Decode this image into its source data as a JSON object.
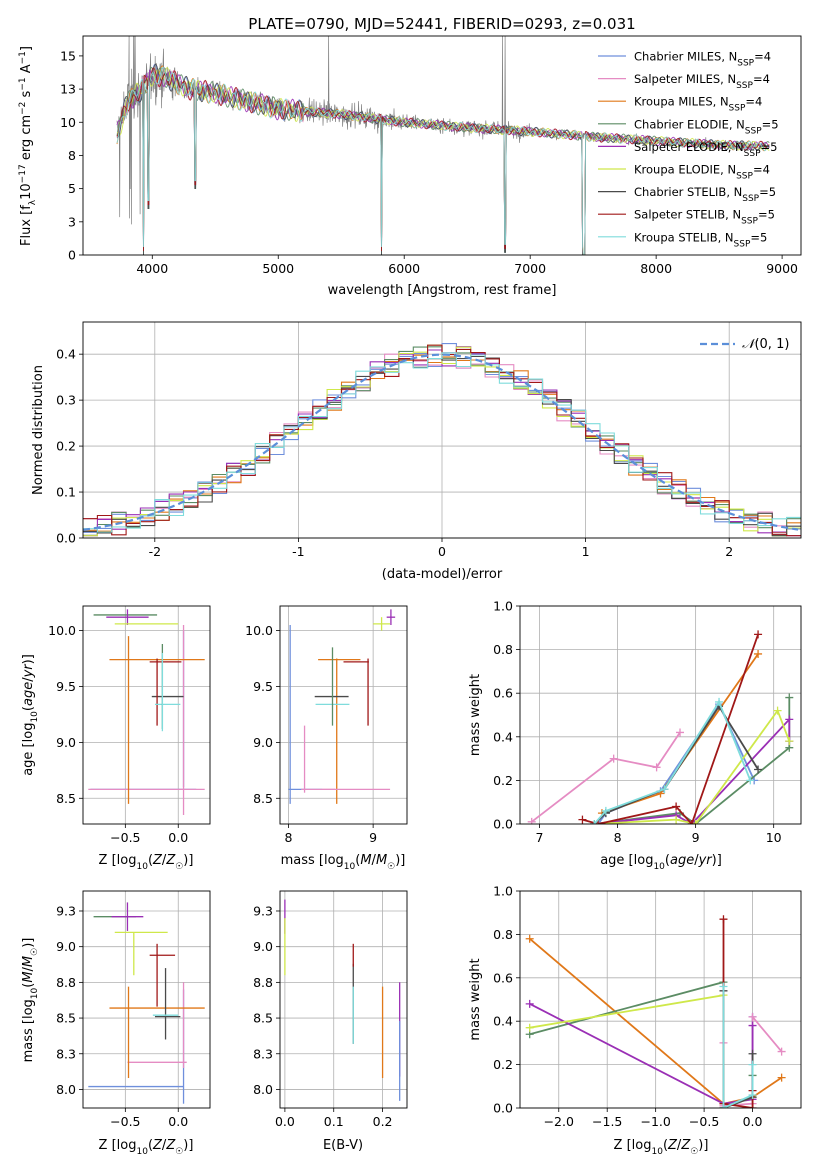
{
  "colors": {
    "Chabrier MILES": "#6f8fdc",
    "Salpeter MILES": "#e58cc3",
    "Kroupa MILES": "#e07819",
    "Chabrier ELODIE": "#5b8c64",
    "Salpeter ELODIE": "#9a2fb5",
    "Kroupa ELODIE": "#cfe84a",
    "Chabrier STELIB": "#4a4a4a",
    "Salpeter STELIB": "#a01818",
    "Kroupa STELIB": "#7fdcdc",
    "data": "#808080",
    "normal": "#5b8fd9",
    "grid": "#b0b0b0"
  },
  "chart_data": [
    {
      "id": "spectrum",
      "type": "line",
      "title": "PLATE=0790, MJD=52441, FIBERID=0293, z=0.031",
      "xlabel": "wavelength [Angstrom, rest frame]",
      "ylabel": "Flux [f_λ10^-17 erg cm^-2 s^-1 A^-1]",
      "xlim": [
        3450,
        9150
      ],
      "ylim": [
        0,
        16.5
      ],
      "xticks": [
        4000,
        5000,
        6000,
        7000,
        8000,
        9000
      ],
      "yticks": [
        0.0,
        2.5,
        5.0,
        7.5,
        10.0,
        12.5,
        15.0
      ],
      "grid": false,
      "legend_position": "top-right",
      "legend": [
        "Chabrier MILES, N_SSP=4",
        "Salpeter MILES, N_SSP=4",
        "Kroupa MILES, N_SSP=4",
        "Chabrier ELODIE, N_SSP=5",
        "Salpeter ELODIE, N_SSP=5",
        "Kroupa ELODIE, N_SSP=4",
        "Chabrier STELIB, N_SSP=5",
        "Salpeter STELIB, N_SSP=5",
        "Kroupa STELIB, N_SSP=5"
      ],
      "model_continuum": [
        [
          3720,
          9.0
        ],
        [
          3800,
          11.5
        ],
        [
          3900,
          12.3
        ],
        [
          4000,
          13.6
        ],
        [
          4100,
          13.4
        ],
        [
          4300,
          12.5
        ],
        [
          4500,
          12.2
        ],
        [
          5000,
          11.0
        ],
        [
          5500,
          10.6
        ],
        [
          6000,
          10.0
        ],
        [
          6500,
          9.6
        ],
        [
          7000,
          9.3
        ],
        [
          7500,
          8.9
        ],
        [
          8000,
          8.6
        ],
        [
          8500,
          8.3
        ],
        [
          8900,
          8.2
        ]
      ],
      "absorption_dips": [
        [
          3930,
          0.0
        ],
        [
          3968,
          3.5
        ],
        [
          4340,
          5.0
        ],
        [
          6800,
          0.2
        ],
        [
          5820,
          0.0
        ],
        [
          7420,
          0.0
        ]
      ],
      "model_wavelength_range": [
        3720,
        8900
      ],
      "data_wavelength_range": [
        3720,
        8800
      ]
    },
    {
      "id": "residuals",
      "type": "line",
      "xlabel": "(data-model)/error",
      "ylabel": "Normed distribution",
      "xlim": [
        -2.5,
        2.5
      ],
      "ylim": [
        0,
        0.47
      ],
      "xticks": [
        -2,
        -1,
        0,
        1,
        2
      ],
      "yticks": [
        0.0,
        0.1,
        0.2,
        0.3,
        0.4
      ],
      "grid": true,
      "legend_position": "top-right",
      "legend": [
        "𝒩(0, 1)"
      ],
      "bin_width": 0.1
    },
    {
      "id": "age_vs_Z",
      "type": "scatter",
      "xlabel": "Z [log10(Z/Z☉)]",
      "ylabel": "age  [log10(age/yr)]",
      "xlim": [
        -0.9,
        0.3
      ],
      "ylim": [
        8.27,
        10.22
      ],
      "xticks": [
        -0.5,
        0.0
      ],
      "yticks": [
        8.5,
        9.0,
        9.5,
        10.0
      ],
      "grid": true,
      "points": [
        {
          "model": "Chabrier MILES",
          "x": -0.33,
          "xerr": 0.5,
          "y": 8.58,
          "yerr": 0.0
        },
        {
          "model": "Chabrier MILES",
          "x": 0.05,
          "xerr": 0.0,
          "y": 9.3,
          "yerr": 0.7
        },
        {
          "model": "Salpeter MILES",
          "x": -0.3,
          "xerr": 0.55,
          "y": 8.58,
          "yerr": 0.0
        },
        {
          "model": "Salpeter MILES",
          "x": 0.05,
          "xerr": 0.0,
          "y": 9.2,
          "yerr": 0.85
        },
        {
          "model": "Kroupa MILES",
          "x": -0.2,
          "xerr": 0.45,
          "y": 9.74,
          "yerr": 0.0
        },
        {
          "model": "Kroupa MILES",
          "x": -0.47,
          "xerr": 0.0,
          "y": 9.2,
          "yerr": 0.75
        },
        {
          "model": "Chabrier ELODIE",
          "x": -0.5,
          "xerr": 0.3,
          "y": 10.14,
          "yerr": 0.0
        },
        {
          "model": "Salpeter ELODIE",
          "x": -0.48,
          "xerr": 0.2,
          "y": 10.12,
          "yerr": 0.07
        },
        {
          "model": "Kroupa ELODIE",
          "x": -0.3,
          "xerr": 0.3,
          "y": 10.06,
          "yerr": 0.0
        },
        {
          "model": "Chabrier STELIB",
          "x": -0.1,
          "xerr": 0.15,
          "y": 9.41,
          "yerr": 0.0
        },
        {
          "model": "Salpeter STELIB",
          "x": -0.12,
          "xerr": 0.15,
          "y": 9.72,
          "yerr": 0.0
        },
        {
          "model": "Salpeter STELIB",
          "x": -0.2,
          "xerr": 0.0,
          "y": 9.45,
          "yerr": 0.3
        },
        {
          "model": "Kroupa STELIB",
          "x": -0.1,
          "xerr": 0.12,
          "y": 9.34,
          "yerr": 0.0
        },
        {
          "model": "Chabrier ELODIE",
          "x": -0.15,
          "xerr": 0.0,
          "y": 9.5,
          "yerr": 0.38
        },
        {
          "model": "Kroupa STELIB",
          "x": -0.15,
          "xerr": 0.0,
          "y": 9.45,
          "yerr": 0.35
        }
      ]
    },
    {
      "id": "age_vs_mass",
      "type": "scatter",
      "xlabel": "mass [log10(M/M☉)]",
      "ylabel": "",
      "xlim": [
        7.9,
        9.4
      ],
      "ylim": [
        8.27,
        10.22
      ],
      "xticks": [
        8,
        9
      ],
      "yticks": [
        8.5,
        9.0,
        9.5,
        10.0
      ],
      "grid": true,
      "points": [
        {
          "model": "Chabrier MILES",
          "x": 8.02,
          "xerr": 0.0,
          "y": 9.25,
          "yerr": 0.8
        },
        {
          "model": "Chabrier MILES",
          "x": 8.2,
          "xerr": 0.2,
          "y": 8.58,
          "yerr": 0.0
        },
        {
          "model": "Salpeter MILES",
          "x": 8.19,
          "xerr": 0.0,
          "y": 8.85,
          "yerr": 0.3
        },
        {
          "model": "Salpeter MILES",
          "x": 8.35,
          "xerr": 0.2,
          "y": 8.58,
          "yerr": 0.0
        },
        {
          "model": "Kroupa MILES",
          "x": 8.57,
          "xerr": 0.0,
          "y": 9.1,
          "yerr": 0.65
        },
        {
          "model": "Kroupa MILES",
          "x": 8.6,
          "xerr": 0.25,
          "y": 9.74,
          "yerr": 0.0
        },
        {
          "model": "Salpeter ELODIE",
          "x": 9.21,
          "xerr": 0.05,
          "y": 10.12,
          "yerr": 0.07
        },
        {
          "model": "Kroupa ELODIE",
          "x": 9.1,
          "xerr": 0.1,
          "y": 10.06,
          "yerr": 0.06
        },
        {
          "model": "Chabrier STELIB",
          "x": 8.51,
          "xerr": 0.2,
          "y": 9.41,
          "yerr": 0.0
        },
        {
          "model": "Salpeter STELIB",
          "x": 8.94,
          "xerr": 0.0,
          "y": 9.45,
          "yerr": 0.3
        },
        {
          "model": "Salpeter STELIB",
          "x": 8.8,
          "xerr": 0.15,
          "y": 9.72,
          "yerr": 0.0
        },
        {
          "model": "Kroupa STELIB",
          "x": 8.52,
          "xerr": 0.2,
          "y": 9.34,
          "yerr": 0.0
        },
        {
          "model": "Chabrier ELODIE",
          "x": 8.52,
          "xerr": 0.0,
          "y": 9.5,
          "yerr": 0.35
        },
        {
          "model": "Salpeter MILES",
          "x": 8.8,
          "xerr": 0.4,
          "y": 8.58,
          "yerr": 0.0
        }
      ]
    },
    {
      "id": "weight_vs_age",
      "type": "line",
      "xlabel": "age  [log10(age/yr)]",
      "ylabel": "mass weight",
      "xlim": [
        6.75,
        10.35
      ],
      "ylim": [
        0,
        1.0
      ],
      "xticks": [
        7,
        8,
        9,
        10
      ],
      "yticks": [
        0.0,
        0.2,
        0.4,
        0.6,
        0.8,
        1.0
      ],
      "grid": true,
      "series": [
        {
          "name": "Chabrier MILES",
          "x": [
            7.75,
            7.85,
            8.55,
            9.3,
            9.75
          ],
          "y": [
            0.0,
            0.05,
            0.15,
            0.55,
            0.2
          ]
        },
        {
          "name": "Salpeter MILES",
          "x": [
            6.9,
            7.95,
            8.5,
            8.8
          ],
          "y": [
            0.01,
            0.3,
            0.26,
            0.42
          ]
        },
        {
          "name": "Kroupa MILES",
          "x": [
            7.8,
            8.55,
            9.8
          ],
          "y": [
            0.05,
            0.14,
            0.78
          ]
        },
        {
          "name": "Chabrier ELODIE",
          "x": [
            7.7,
            8.8,
            9.0,
            10.2,
            10.2
          ],
          "y": [
            0.0,
            0.05,
            0.0,
            0.35,
            0.58
          ]
        },
        {
          "name": "Salpeter ELODIE",
          "x": [
            7.7,
            8.75,
            8.95,
            10.2,
            10.2
          ],
          "y": [
            0.0,
            0.04,
            0.0,
            0.48,
            0.38
          ]
        },
        {
          "name": "Kroupa ELODIE",
          "x": [
            7.7,
            8.75,
            9.0,
            10.05,
            10.2
          ],
          "y": [
            0.0,
            0.02,
            0.0,
            0.52,
            0.38
          ]
        },
        {
          "name": "Chabrier STELIB",
          "x": [
            7.7,
            7.85,
            8.6,
            9.3,
            9.8
          ],
          "y": [
            0.0,
            0.05,
            0.16,
            0.54,
            0.25
          ]
        },
        {
          "name": "Salpeter STELIB",
          "x": [
            7.55,
            7.75,
            8.75,
            8.95,
            9.8
          ],
          "y": [
            0.02,
            0.0,
            0.08,
            0.0,
            0.87
          ]
        },
        {
          "name": "Kroupa STELIB",
          "x": [
            7.7,
            7.85,
            8.6,
            9.3,
            9.7
          ],
          "y": [
            0.0,
            0.06,
            0.16,
            0.56,
            0.2
          ]
        }
      ]
    },
    {
      "id": "mass_vs_Z",
      "type": "scatter",
      "xlabel": "Z [log10(Z/Z☉)]",
      "ylabel": "mass [log10(M/M☉)]",
      "xlim": [
        -0.9,
        0.3
      ],
      "ylim": [
        7.87,
        9.39
      ],
      "xticks": [
        -0.5,
        0.0
      ],
      "yticks": [
        8.0,
        8.25,
        8.5,
        8.75,
        9.0,
        9.25
      ],
      "grid": true,
      "points": [
        {
          "model": "Chabrier MILES",
          "x": -0.4,
          "xerr": 0.45,
          "y": 8.02,
          "yerr": 0.0
        },
        {
          "model": "Chabrier MILES",
          "x": 0.05,
          "xerr": 0.0,
          "y": 8.3,
          "yerr": 0.4
        },
        {
          "model": "Salpeter MILES",
          "x": -0.2,
          "xerr": 0.28,
          "y": 8.19,
          "yerr": 0.0
        },
        {
          "model": "Salpeter MILES",
          "x": 0.05,
          "xerr": 0.0,
          "y": 8.45,
          "yerr": 0.3
        },
        {
          "model": "Kroupa MILES",
          "x": -0.2,
          "xerr": 0.45,
          "y": 8.57,
          "yerr": 0.0
        },
        {
          "model": "Kroupa MILES",
          "x": -0.47,
          "xerr": 0.0,
          "y": 8.4,
          "yerr": 0.32
        },
        {
          "model": "Chabrier ELODIE",
          "x": -0.6,
          "xerr": 0.2,
          "y": 9.21,
          "yerr": 0.0
        },
        {
          "model": "Salpeter ELODIE",
          "x": -0.48,
          "xerr": 0.15,
          "y": 9.21,
          "yerr": 0.1
        },
        {
          "model": "Kroupa ELODIE",
          "x": -0.35,
          "xerr": 0.25,
          "y": 9.1,
          "yerr": 0.0
        },
        {
          "model": "Kroupa ELODIE",
          "x": -0.42,
          "xerr": 0.0,
          "y": 8.95,
          "yerr": 0.15
        },
        {
          "model": "Chabrier STELIB",
          "x": -0.1,
          "xerr": 0.12,
          "y": 8.51,
          "yerr": 0.0
        },
        {
          "model": "Chabrier STELIB",
          "x": -0.12,
          "xerr": 0.0,
          "y": 8.6,
          "yerr": 0.25
        },
        {
          "model": "Salpeter STELIB",
          "x": -0.15,
          "xerr": 0.12,
          "y": 8.94,
          "yerr": 0.0
        },
        {
          "model": "Salpeter STELIB",
          "x": -0.2,
          "xerr": 0.0,
          "y": 8.8,
          "yerr": 0.22
        },
        {
          "model": "Kroupa STELIB",
          "x": -0.12,
          "xerr": 0.12,
          "y": 8.52,
          "yerr": 0.0
        }
      ]
    },
    {
      "id": "mass_vs_EBV",
      "type": "scatter",
      "xlabel": "E(B-V)",
      "ylabel": "",
      "xlim": [
        -0.01,
        0.25
      ],
      "ylim": [
        7.87,
        9.39
      ],
      "xticks": [
        0.0,
        0.1,
        0.2
      ],
      "yticks": [
        8.0,
        8.25,
        8.5,
        8.75,
        9.0,
        9.25
      ],
      "grid": true,
      "points": [
        {
          "model": "Salpeter ELODIE",
          "x": 0.0,
          "xerr": 0.0,
          "y": 9.21,
          "yerr": 0.12
        },
        {
          "model": "Kroupa ELODIE",
          "x": 0.0,
          "xerr": 0.0,
          "y": 9.0,
          "yerr": 0.2
        },
        {
          "model": "Chabrier STELIB",
          "x": 0.14,
          "xerr": 0.0,
          "y": 8.6,
          "yerr": 0.28
        },
        {
          "model": "Salpeter STELIB",
          "x": 0.14,
          "xerr": 0.0,
          "y": 8.94,
          "yerr": 0.08
        },
        {
          "model": "Kroupa STELIB",
          "x": 0.14,
          "xerr": 0.0,
          "y": 8.52,
          "yerr": 0.2
        },
        {
          "model": "Kroupa MILES",
          "x": 0.2,
          "xerr": 0.0,
          "y": 8.4,
          "yerr": 0.32
        },
        {
          "model": "Salpeter ELODIE",
          "x": 0.235,
          "xerr": 0.0,
          "y": 8.42,
          "yerr": 0.33
        },
        {
          "model": "Chabrier MILES",
          "x": 0.235,
          "xerr": 0.0,
          "y": 8.2,
          "yerr": 0.28
        }
      ]
    },
    {
      "id": "weight_vs_Z",
      "type": "line",
      "xlabel": "Z [log10(Z/Z☉)]",
      "ylabel": "mass weight",
      "xlim": [
        -2.4,
        0.5
      ],
      "ylim": [
        0,
        1.0
      ],
      "xticks": [
        -2.0,
        -1.5,
        -1.0,
        -0.5,
        0.0
      ],
      "yticks": [
        0.0,
        0.2,
        0.4,
        0.6,
        0.8,
        1.0
      ],
      "grid": true,
      "series": [
        {
          "name": "Chabrier MILES",
          "x": [
            -0.3,
            0.0,
            0.0
          ],
          "y": [
            0.0,
            0.05,
            0.42
          ]
        },
        {
          "name": "Salpeter MILES",
          "x": [
            -0.3,
            -0.3,
            0.0,
            0.0,
            0.3
          ],
          "y": [
            0.3,
            0.01,
            0.02,
            0.42,
            0.26
          ]
        },
        {
          "name": "Kroupa MILES",
          "x": [
            -2.3,
            -0.3,
            0.0,
            0.3
          ],
          "y": [
            0.78,
            0.02,
            0.05,
            0.14
          ]
        },
        {
          "name": "Chabrier ELODIE",
          "x": [
            -2.3,
            -0.3,
            -0.3,
            0.0,
            0.0
          ],
          "y": [
            0.34,
            0.58,
            0.0,
            0.05,
            0.15
          ]
        },
        {
          "name": "Salpeter ELODIE",
          "x": [
            -2.3,
            -0.3,
            0.0,
            0.0
          ],
          "y": [
            0.48,
            0.02,
            0.04,
            0.38
          ]
        },
        {
          "name": "Kroupa ELODIE",
          "x": [
            -2.3,
            -0.3,
            -0.3,
            0.0
          ],
          "y": [
            0.37,
            0.52,
            0.0,
            0.05
          ]
        },
        {
          "name": "Chabrier STELIB",
          "x": [
            -0.3,
            -0.3,
            0.0,
            0.0
          ],
          "y": [
            0.54,
            0.0,
            0.05,
            0.25
          ]
        },
        {
          "name": "Salpeter STELIB",
          "x": [
            -0.3,
            -0.3,
            0.0,
            0.0
          ],
          "y": [
            0.87,
            0.02,
            0.0,
            0.08
          ]
        },
        {
          "name": "Kroupa STELIB",
          "x": [
            -0.3,
            -0.3,
            0.0,
            0.0
          ],
          "y": [
            0.56,
            0.0,
            0.06,
            0.2
          ]
        }
      ]
    }
  ]
}
